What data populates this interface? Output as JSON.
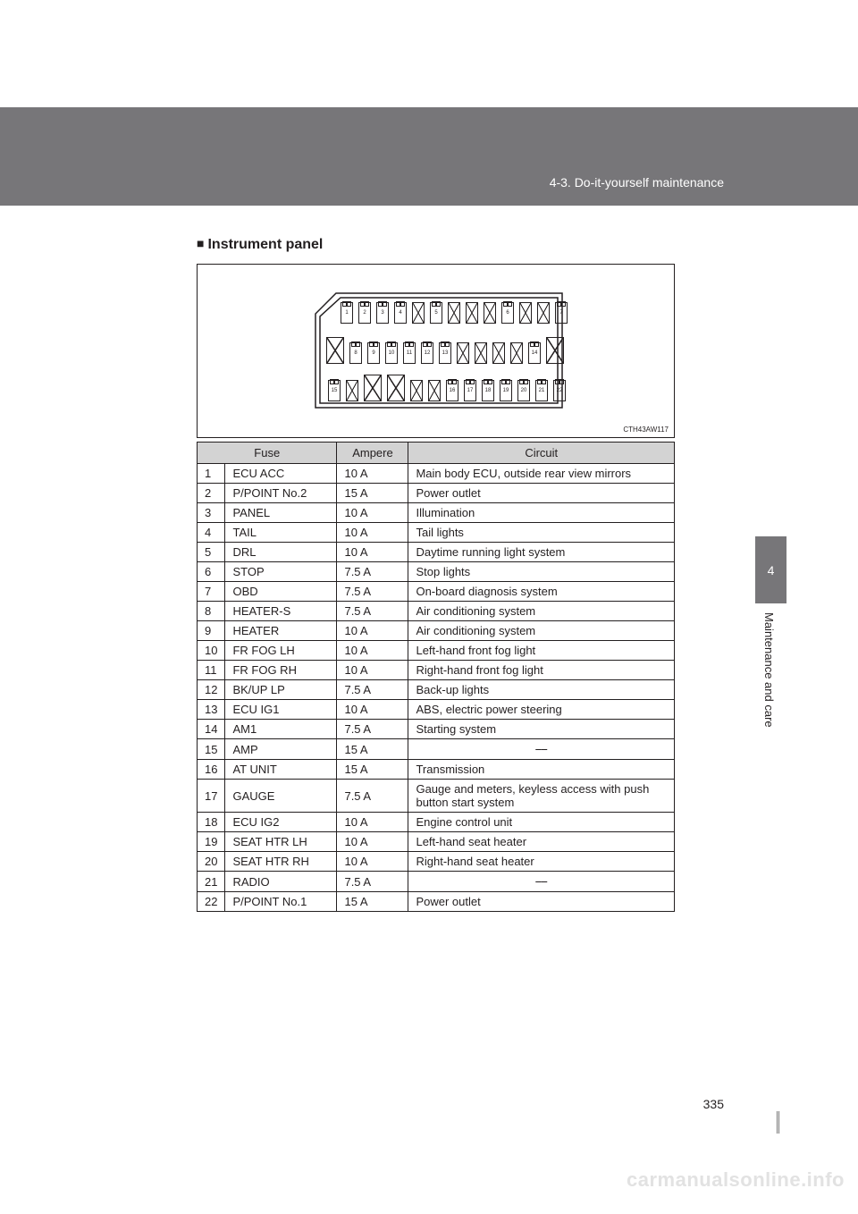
{
  "header": {
    "breadcrumb": "4-3. Do-it-yourself maintenance"
  },
  "section": {
    "title": "Instrument panel"
  },
  "diagram": {
    "code": "CTH43AW117",
    "row1": [
      {
        "t": "f",
        "n": "1"
      },
      {
        "t": "f",
        "n": "2"
      },
      {
        "t": "f",
        "n": "3"
      },
      {
        "t": "f",
        "n": "4"
      },
      {
        "t": "b"
      },
      {
        "t": "f",
        "n": "5"
      },
      {
        "t": "b"
      },
      {
        "t": "b"
      },
      {
        "t": "b"
      },
      {
        "t": "f",
        "n": "6"
      },
      {
        "t": "b"
      },
      {
        "t": "b"
      },
      {
        "t": "f",
        "n": "7"
      }
    ],
    "row2": [
      {
        "t": "B"
      },
      {
        "t": "f",
        "n": "8"
      },
      {
        "t": "f",
        "n": "9"
      },
      {
        "t": "f",
        "n": "10"
      },
      {
        "t": "f",
        "n": "11"
      },
      {
        "t": "f",
        "n": "12"
      },
      {
        "t": "f",
        "n": "13"
      },
      {
        "t": "b"
      },
      {
        "t": "b"
      },
      {
        "t": "b"
      },
      {
        "t": "b"
      },
      {
        "t": "f",
        "n": "14"
      },
      {
        "t": "B"
      }
    ],
    "row3": [
      {
        "t": "f",
        "n": "15"
      },
      {
        "t": "b"
      },
      {
        "t": "B"
      },
      {
        "t": "B"
      },
      {
        "t": "b"
      },
      {
        "t": "b"
      },
      {
        "t": "f",
        "n": "16"
      },
      {
        "t": "f",
        "n": "17"
      },
      {
        "t": "f",
        "n": "18"
      },
      {
        "t": "f",
        "n": "19"
      },
      {
        "t": "f",
        "n": "20"
      },
      {
        "t": "f",
        "n": "21"
      },
      {
        "t": "f",
        "n": "22"
      }
    ]
  },
  "table": {
    "headers": {
      "fuse": "Fuse",
      "ampere": "Ampere",
      "circuit": "Circuit"
    },
    "rows": [
      {
        "i": "1",
        "fuse": "ECU ACC",
        "amp": "10 A",
        "circ": "Main body ECU, outside rear view mirrors"
      },
      {
        "i": "2",
        "fuse": "P/POINT No.2",
        "amp": "15 A",
        "circ": "Power outlet"
      },
      {
        "i": "3",
        "fuse": "PANEL",
        "amp": "10 A",
        "circ": "Illumination"
      },
      {
        "i": "4",
        "fuse": "TAIL",
        "amp": "10 A",
        "circ": "Tail lights"
      },
      {
        "i": "5",
        "fuse": "DRL",
        "amp": "10 A",
        "circ": "Daytime running light system"
      },
      {
        "i": "6",
        "fuse": "STOP",
        "amp": "7.5 A",
        "circ": "Stop lights"
      },
      {
        "i": "7",
        "fuse": "OBD",
        "amp": "7.5 A",
        "circ": "On-board diagnosis system"
      },
      {
        "i": "8",
        "fuse": "HEATER-S",
        "amp": "7.5 A",
        "circ": "Air conditioning system"
      },
      {
        "i": "9",
        "fuse": "HEATER",
        "amp": "10 A",
        "circ": "Air conditioning system"
      },
      {
        "i": "10",
        "fuse": "FR FOG LH",
        "amp": "10 A",
        "circ": "Left-hand front fog light"
      },
      {
        "i": "11",
        "fuse": "FR FOG RH",
        "amp": "10 A",
        "circ": "Right-hand front fog light"
      },
      {
        "i": "12",
        "fuse": "BK/UP LP",
        "amp": "7.5 A",
        "circ": "Back-up lights"
      },
      {
        "i": "13",
        "fuse": "ECU IG1",
        "amp": "10 A",
        "circ": "ABS, electric power steering"
      },
      {
        "i": "14",
        "fuse": "AM1",
        "amp": "7.5 A",
        "circ": "Starting system"
      },
      {
        "i": "15",
        "fuse": "AMP",
        "amp": "15 A",
        "circ": "⎯⎯"
      },
      {
        "i": "16",
        "fuse": "AT UNIT",
        "amp": "15 A",
        "circ": "Transmission"
      },
      {
        "i": "17",
        "fuse": "GAUGE",
        "amp": "7.5 A",
        "circ": "Gauge and meters, keyless access with push button start system"
      },
      {
        "i": "18",
        "fuse": "ECU IG2",
        "amp": "10 A",
        "circ": "Engine control unit"
      },
      {
        "i": "19",
        "fuse": "SEAT HTR LH",
        "amp": "10 A",
        "circ": "Left-hand seat heater"
      },
      {
        "i": "20",
        "fuse": "SEAT HTR RH",
        "amp": "10 A",
        "circ": "Right-hand seat heater"
      },
      {
        "i": "21",
        "fuse": "RADIO",
        "amp": "7.5 A",
        "circ": "⎯⎯"
      },
      {
        "i": "22",
        "fuse": "P/POINT No.1",
        "amp": "15 A",
        "circ": "Power outlet"
      }
    ],
    "dash_rows": [
      "15",
      "21"
    ]
  },
  "sidebar": {
    "chapter_num": "4",
    "chapter_label": "Maintenance and care"
  },
  "footer": {
    "page_num": "335",
    "watermark": "carmanualsonline.info"
  },
  "colors": {
    "header_bg": "#777679",
    "table_header_bg": "#d3d3d3",
    "text": "#231f20",
    "watermark": "#e2e2e2"
  }
}
